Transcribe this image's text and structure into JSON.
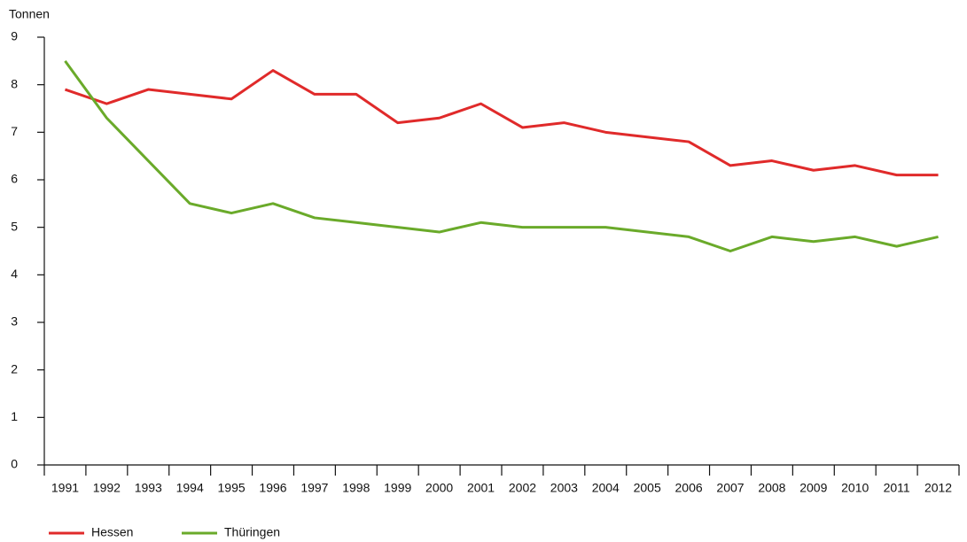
{
  "chart_data": {
    "type": "line",
    "y_label": "Tonnen",
    "categories": [
      "1991",
      "1992",
      "1993",
      "1994",
      "1995",
      "1996",
      "1997",
      "1998",
      "1999",
      "2000",
      "2001",
      "2002",
      "2003",
      "2004",
      "2005",
      "2006",
      "2007",
      "2008",
      "2009",
      "2010",
      "2011",
      "2012"
    ],
    "series": [
      {
        "name": "Hessen",
        "color": "#e02a2a",
        "values": [
          7.9,
          7.6,
          7.9,
          7.8,
          7.7,
          8.3,
          7.8,
          7.8,
          7.2,
          7.3,
          7.6,
          7.1,
          7.2,
          7.0,
          6.9,
          6.8,
          6.3,
          6.4,
          6.2,
          6.3,
          6.1,
          6.1
        ]
      },
      {
        "name": "Thüringen",
        "color": "#6aaa2a",
        "values": [
          8.5,
          7.3,
          6.4,
          5.5,
          5.3,
          5.5,
          5.2,
          5.1,
          5.0,
          4.9,
          5.1,
          5.0,
          5.0,
          5.0,
          4.9,
          4.8,
          4.5,
          4.8,
          4.7,
          4.8,
          4.6,
          4.8
        ]
      }
    ],
    "ylim": [
      0,
      9
    ],
    "yticks": [
      0,
      1,
      2,
      3,
      4,
      5,
      6,
      7,
      8,
      9
    ],
    "legend": "bottom-left"
  }
}
